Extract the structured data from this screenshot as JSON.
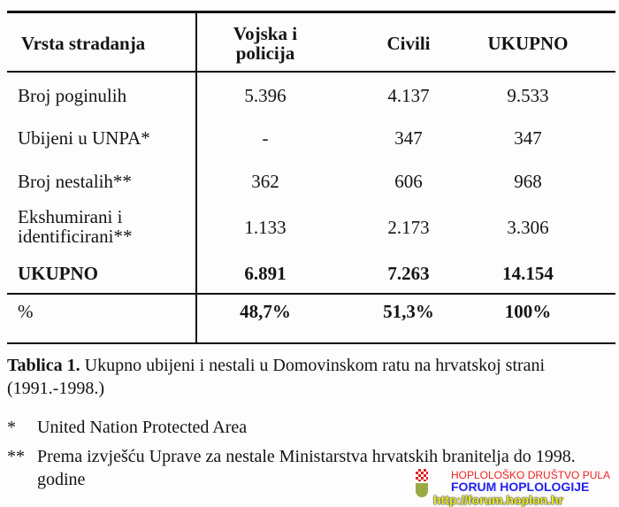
{
  "table": {
    "headers": [
      "Vrsta stradanja",
      "Vojska i policija",
      "Civili",
      "UKUPNO"
    ],
    "rows": [
      {
        "label": "Broj poginulih",
        "values": [
          "5.396",
          "4.137",
          "9.533"
        ]
      },
      {
        "label": "Ubijeni u UNPA*",
        "values": [
          "-",
          "347",
          "347"
        ]
      },
      {
        "label": "Broj nestalih**",
        "values": [
          "362",
          "606",
          "968"
        ]
      },
      {
        "label": "Ekshumirani i identificirani**",
        "values": [
          "1.133",
          "2.173",
          "3.306"
        ]
      },
      {
        "label": "UKUPNO",
        "values": [
          "6.891",
          "7.263",
          "14.154"
        ]
      },
      {
        "label": "%",
        "values": [
          "48,7%",
          "51,3%",
          "100%"
        ]
      }
    ]
  },
  "caption": {
    "label": "Tablica 1.",
    "text": "Ukupno ubijeni i nestali u Domovinskom ratu na hrvatskoj strani (1991.-1998.)",
    "notes": [
      {
        "mark": "*",
        "text": "United Nation Protected Area"
      },
      {
        "mark": "**",
        "text": "Prema izvješću Uprave za nestale Ministarstva hrvatskih branitelja do 1998. godine"
      }
    ]
  },
  "watermark": {
    "line1": "HOPLOLOŠKO DRUŠTVO PULA",
    "line2": "FORUM HOPLOLOGIJE",
    "line3": "http://forum.hoplon.hr"
  }
}
